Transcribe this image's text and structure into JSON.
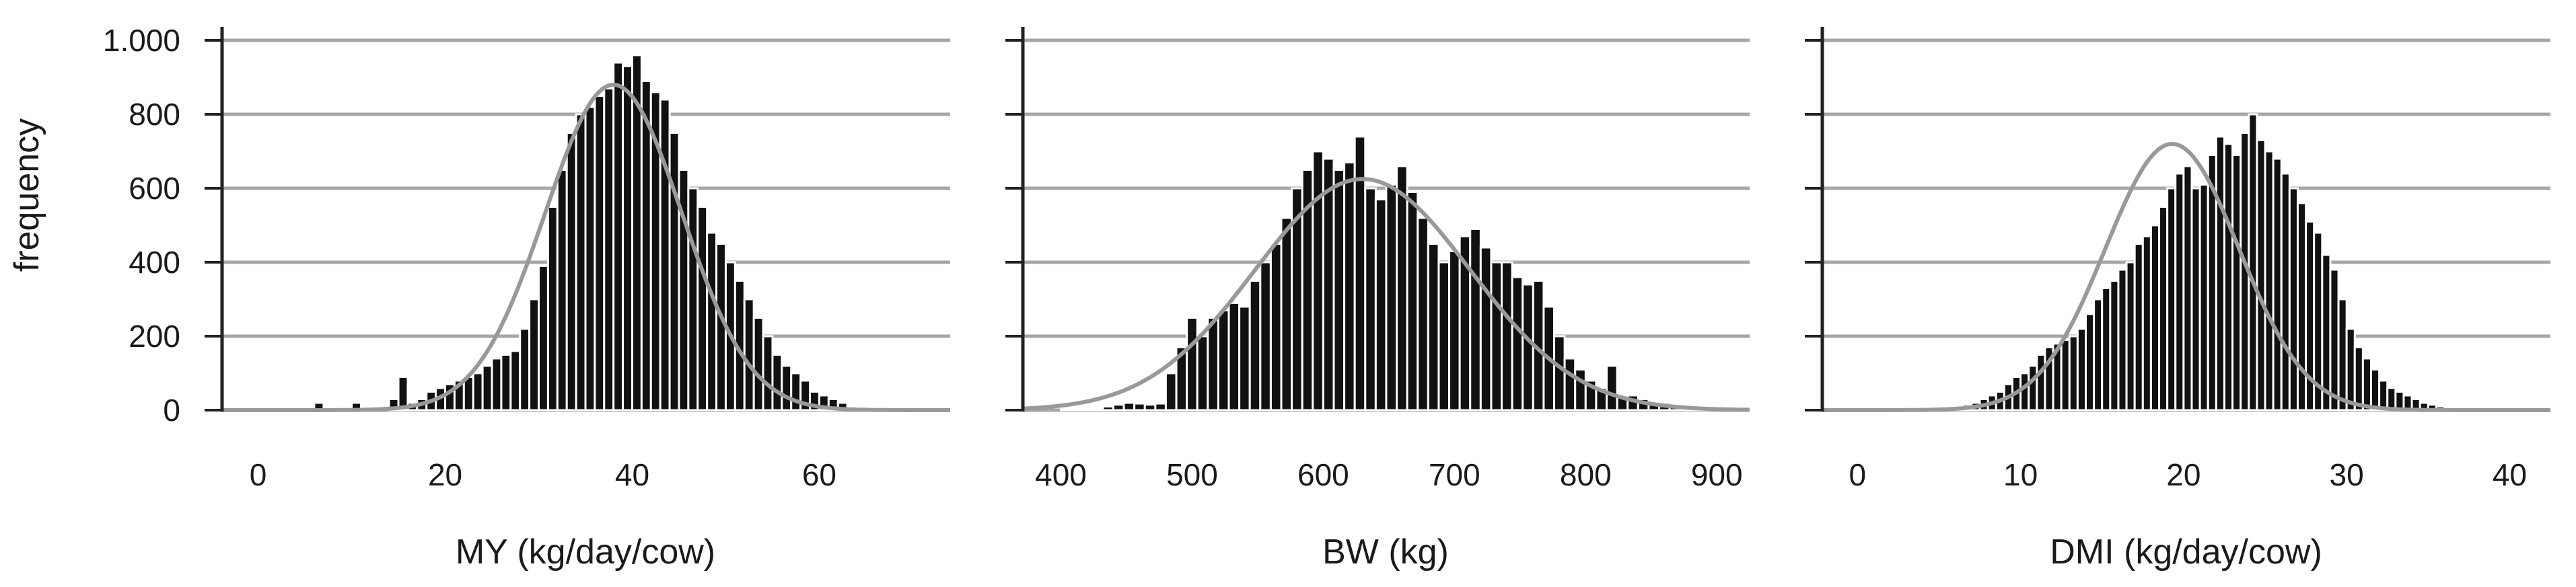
{
  "figure": {
    "ylabel": "frequency"
  },
  "colors": {
    "bar": "#111111",
    "bar_edge": "#ffffff",
    "curve": "#999999",
    "grid": "#a6a6a6",
    "axis": "#222222"
  },
  "chart_data": [
    {
      "type": "bar",
      "xlabel": "MY (kg/day/cow)",
      "ylabel": "frequency",
      "xlim": [
        -4,
        74
      ],
      "ylim": [
        0,
        1000
      ],
      "xticks": [
        0,
        20,
        40,
        60
      ],
      "xtick_labels": [
        "0",
        "20",
        "40",
        "60"
      ],
      "yticks": [
        0,
        200,
        400,
        600,
        800,
        1000
      ],
      "ytick_labels": [
        "0",
        "200",
        "400",
        "600",
        "800",
        "1.000"
      ],
      "grid": true,
      "bin_start": 6,
      "bin_width": 1,
      "values": [
        20,
        0,
        0,
        0,
        20,
        0,
        0,
        0,
        30,
        90,
        20,
        30,
        50,
        60,
        70,
        80,
        90,
        100,
        120,
        140,
        150,
        160,
        220,
        300,
        390,
        550,
        650,
        750,
        800,
        820,
        850,
        870,
        940,
        930,
        960,
        890,
        860,
        840,
        750,
        650,
        600,
        550,
        480,
        450,
        400,
        350,
        300,
        250,
        200,
        150,
        120,
        100,
        80,
        50,
        40,
        30,
        20,
        10,
        5,
        3,
        2,
        1
      ],
      "fit_curve": {
        "type": "normal",
        "mean": 38,
        "sd": 7.3,
        "peak": 880
      }
    },
    {
      "type": "bar",
      "xlabel": "BW (kg)",
      "ylabel": "frequency",
      "xlim": [
        370,
        925
      ],
      "ylim": [
        0,
        1000
      ],
      "xticks": [
        400,
        500,
        600,
        700,
        800,
        900
      ],
      "xtick_labels": [
        "400",
        "500",
        "600",
        "700",
        "800",
        "900"
      ],
      "yticks": [
        0,
        200,
        400,
        600,
        800,
        1000
      ],
      "ytick_labels": [
        "0",
        "200",
        "400",
        "600",
        "800",
        "1.000"
      ],
      "grid": true,
      "bin_start": 400,
      "bin_width": 8,
      "values": [
        3,
        3,
        5,
        5,
        10,
        15,
        20,
        18,
        15,
        18,
        100,
        170,
        250,
        200,
        250,
        270,
        290,
        280,
        350,
        400,
        450,
        520,
        600,
        650,
        700,
        680,
        650,
        670,
        740,
        600,
        570,
        610,
        660,
        590,
        520,
        450,
        400,
        430,
        470,
        490,
        440,
        400,
        400,
        360,
        340,
        350,
        280,
        200,
        140,
        110,
        80,
        60,
        120,
        40,
        40,
        30,
        20,
        20,
        15,
        10,
        10,
        5
      ],
      "fit_curve": {
        "type": "normal",
        "mean": 630,
        "sd": 82,
        "peak": 625
      }
    },
    {
      "type": "bar",
      "xlabel": "DMI (kg/day/cow)",
      "ylabel": "frequency",
      "xlim": [
        -2.2,
        42.5
      ],
      "ylim": [
        0,
        1000
      ],
      "xticks": [
        0,
        10,
        20,
        30,
        40
      ],
      "xtick_labels": [
        "0",
        "10",
        "20",
        "30",
        "40"
      ],
      "yticks": [
        0,
        200,
        400,
        600,
        800,
        1000
      ],
      "ytick_labels": [
        "0",
        "200",
        "400",
        "600",
        "800",
        "1.000"
      ],
      "grid": true,
      "bin_start": 4,
      "bin_width": 0.5,
      "values": [
        3,
        5,
        5,
        10,
        10,
        15,
        20,
        30,
        40,
        50,
        70,
        90,
        100,
        120,
        150,
        170,
        180,
        190,
        200,
        220,
        260,
        300,
        330,
        350,
        380,
        400,
        450,
        470,
        500,
        550,
        600,
        640,
        660,
        600,
        610,
        690,
        740,
        720,
        690,
        750,
        800,
        730,
        700,
        680,
        640,
        600,
        560,
        510,
        480,
        420,
        380,
        300,
        220,
        170,
        140,
        110,
        80,
        60,
        50,
        40,
        30,
        20,
        15,
        10,
        8,
        5,
        3,
        2,
        2,
        1
      ],
      "fit_curve": {
        "type": "normal",
        "mean": 19.3,
        "sd": 4.1,
        "peak": 720
      }
    }
  ]
}
